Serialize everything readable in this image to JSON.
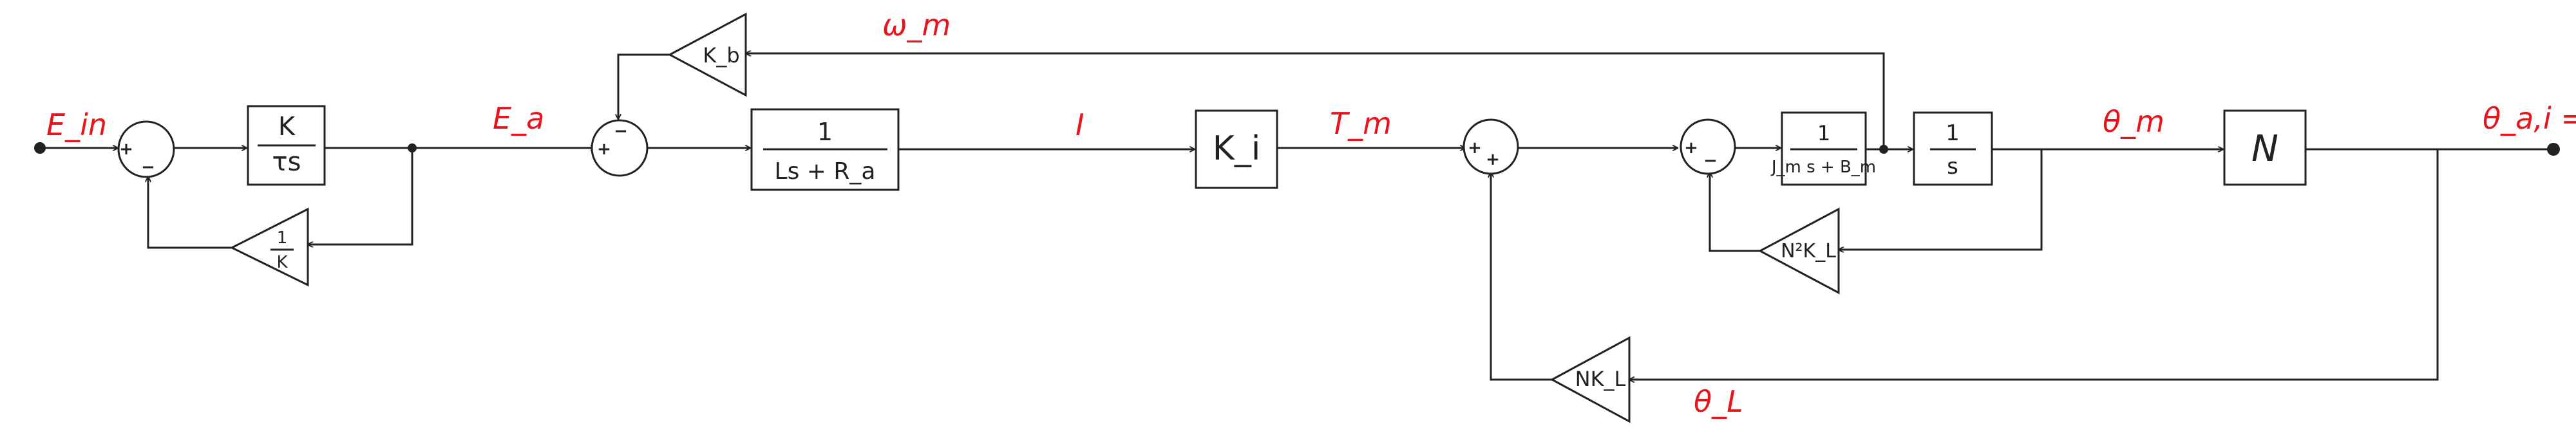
{
  "signals": {
    "e_in": "E_in",
    "e_a": "E_a",
    "omega_m": "ω_m",
    "current": "I",
    "torque_m": "T_m",
    "theta_m": "θ_m",
    "theta_out": "θ_a,i = θ_L",
    "theta_l": "θ_L"
  },
  "blocks": {
    "k_tau_num": "K",
    "k_tau_den": "τs",
    "inv_k_num": "1",
    "inv_k_den": "K",
    "k_b": "K_b",
    "armature_num": "1",
    "armature_den": "Ls + R_a",
    "k_i": "K_i",
    "motor_num": "1",
    "motor_den": "J_m s + B_m",
    "integrator_num": "1",
    "integrator_den": "s",
    "gear_ratio": "N",
    "n2kl": "N²K_L",
    "nkl": "NK_L"
  },
  "signs": {
    "sj1_ref": "+",
    "sj1_fb": "−",
    "sj2_top": "−",
    "sj2_left": "+",
    "sj3_left": "+",
    "sj3_bottom": "+",
    "sj4_left": "+",
    "sj4_bottom": "−"
  },
  "colors": {
    "signal_label": "#e8141b",
    "line": "#222222"
  }
}
